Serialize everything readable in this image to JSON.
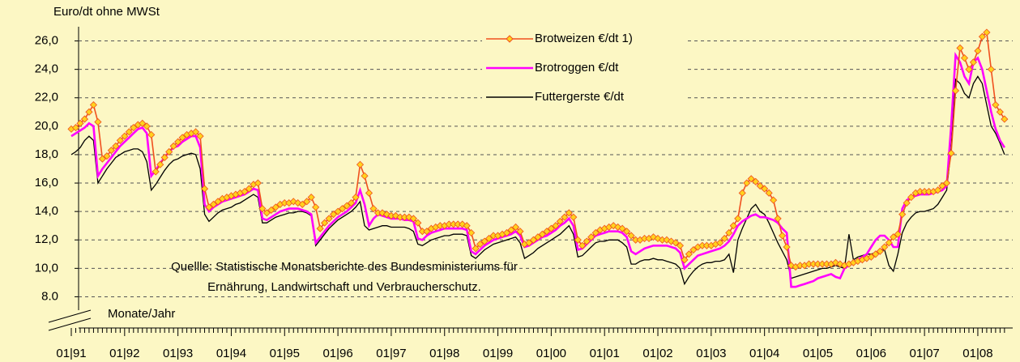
{
  "chart_data": {
    "type": "line",
    "y_axis_label": "Euro/dt ohne MWSt",
    "x_axis_label": "Monate/Jahr",
    "annotation": [
      "Quellle: Statistische Monatsberichte des Bundesministeriums für",
      "Ernährung, Landwirtschaft und Verbraucherschutz."
    ],
    "grid": true,
    "ylim": [
      7,
      27
    ],
    "yticks": [
      {
        "value": 26,
        "label": "26,0"
      },
      {
        "value": 24,
        "label": "24,0"
      },
      {
        "value": 22,
        "label": "22,0"
      },
      {
        "value": 20,
        "label": "20,0"
      },
      {
        "value": 18,
        "label": "18,0"
      },
      {
        "value": 16,
        "label": "16,0"
      },
      {
        "value": 14,
        "label": "14,0"
      },
      {
        "value": 12,
        "label": "12,0"
      },
      {
        "value": 10,
        "label": "10,0"
      },
      {
        "value": 8,
        "label": "8.0"
      }
    ],
    "categories": [
      "01|91",
      null,
      null,
      null,
      null,
      null,
      null,
      null,
      null,
      null,
      null,
      null,
      "01|92",
      null,
      null,
      null,
      null,
      null,
      null,
      null,
      null,
      null,
      null,
      null,
      "01|93",
      null,
      null,
      null,
      null,
      null,
      null,
      null,
      null,
      null,
      null,
      null,
      "01|94",
      null,
      null,
      null,
      null,
      null,
      null,
      null,
      null,
      null,
      null,
      null,
      "01|95",
      null,
      null,
      null,
      null,
      null,
      null,
      null,
      null,
      null,
      null,
      null,
      "01|96",
      null,
      null,
      null,
      null,
      null,
      null,
      null,
      null,
      null,
      null,
      null,
      "01|97",
      null,
      null,
      null,
      null,
      null,
      null,
      null,
      null,
      null,
      null,
      null,
      "01|98",
      null,
      null,
      null,
      null,
      null,
      null,
      null,
      null,
      null,
      null,
      null,
      "01|99",
      null,
      null,
      null,
      null,
      null,
      null,
      null,
      null,
      null,
      null,
      null,
      "01|00",
      null,
      null,
      null,
      null,
      null,
      null,
      null,
      null,
      null,
      null,
      null,
      "01|01",
      null,
      null,
      null,
      null,
      null,
      null,
      null,
      null,
      null,
      null,
      null,
      "01|02",
      null,
      null,
      null,
      null,
      null,
      null,
      null,
      null,
      null,
      null,
      null,
      "01|03",
      null,
      null,
      null,
      null,
      null,
      null,
      null,
      null,
      null,
      null,
      null,
      "01|04",
      null,
      null,
      null,
      null,
      null,
      null,
      null,
      null,
      null,
      null,
      null,
      "01|05",
      null,
      null,
      null,
      null,
      null,
      null,
      null,
      null,
      null,
      null,
      null,
      "01|06",
      null,
      null,
      null,
      null,
      null,
      null,
      null,
      null,
      null,
      null,
      null,
      "01|07",
      null,
      null,
      null,
      null,
      null,
      null,
      null,
      null,
      null,
      null,
      null,
      "01|08",
      null,
      null,
      null,
      null,
      null,
      null
    ],
    "series": [
      {
        "name": "Brotweizen €/dt 1)",
        "color": "#f0501e",
        "marker": "diamond",
        "marker_color": "#ffd21e",
        "values": [
          19.8,
          19.9,
          20.2,
          20.5,
          21.0,
          21.5,
          20.3,
          17.7,
          17.9,
          18.3,
          18.6,
          19.0,
          19.3,
          19.6,
          19.9,
          20.1,
          20.2,
          20.0,
          19.4,
          16.8,
          17.3,
          17.8,
          18.2,
          18.6,
          18.9,
          19.2,
          19.4,
          19.5,
          19.6,
          19.3,
          15.6,
          14.3,
          14.5,
          14.7,
          14.9,
          15.0,
          15.1,
          15.2,
          15.3,
          15.4,
          15.6,
          15.9,
          16.0,
          14.2,
          13.9,
          14.1,
          14.3,
          14.5,
          14.6,
          14.6,
          14.7,
          14.6,
          14.5,
          14.7,
          15.0,
          14.3,
          12.8,
          13.2,
          13.5,
          13.8,
          14.0,
          14.2,
          14.4,
          14.6,
          15.0,
          17.3,
          16.5,
          15.3,
          14.2,
          13.9,
          13.9,
          13.8,
          13.7,
          13.7,
          13.6,
          13.6,
          13.6,
          13.5,
          13.2,
          12.6,
          12.6,
          12.8,
          12.9,
          13.0,
          13.0,
          13.1,
          13.1,
          13.1,
          13.1,
          13.0,
          12.5,
          11.4,
          11.7,
          11.9,
          12.1,
          12.3,
          12.3,
          12.4,
          12.5,
          12.7,
          12.9,
          12.6,
          11.7,
          11.8,
          12.0,
          12.2,
          12.4,
          12.6,
          12.8,
          13.0,
          13.3,
          13.6,
          13.9,
          13.6,
          12.0,
          11.6,
          11.9,
          12.2,
          12.5,
          12.7,
          12.8,
          12.9,
          13.0,
          12.9,
          12.8,
          12.6,
          12.3,
          12.0,
          12.0,
          12.1,
          12.1,
          12.2,
          12.1,
          12.0,
          12.0,
          11.9,
          11.8,
          11.6,
          10.6,
          11.0,
          11.3,
          11.5,
          11.6,
          11.6,
          11.6,
          11.7,
          11.8,
          12.1,
          12.5,
          13.0,
          13.5,
          15.3,
          16.0,
          16.3,
          16.1,
          15.8,
          15.6,
          15.3,
          14.8,
          13.5,
          12.3,
          11.5,
          10.2,
          10.1,
          10.2,
          10.2,
          10.3,
          10.3,
          10.3,
          10.3,
          10.3,
          10.3,
          10.4,
          10.3,
          10.2,
          10.3,
          10.4,
          10.5,
          10.6,
          10.7,
          10.8,
          11.0,
          11.2,
          11.5,
          11.8,
          12.2,
          12.4,
          13.8,
          14.6,
          15.0,
          15.3,
          15.4,
          15.4,
          15.4,
          15.4,
          15.5,
          15.8,
          16.0,
          18.1,
          22.5,
          25.5,
          24.8,
          24.0,
          24.5,
          25.3,
          26.3,
          26.6,
          24.0,
          21.5,
          21.0,
          20.5
        ]
      },
      {
        "name": "Brotroggen €/dt",
        "color": "#ff00ff",
        "values": [
          19.3,
          19.5,
          19.7,
          19.9,
          20.2,
          20.0,
          16.5,
          17.0,
          17.4,
          17.8,
          18.2,
          18.6,
          18.9,
          19.2,
          19.5,
          19.8,
          19.9,
          19.5,
          16.5,
          16.9,
          17.4,
          17.8,
          18.2,
          18.5,
          18.6,
          18.9,
          19.1,
          19.3,
          19.3,
          18.5,
          14.5,
          14.0,
          14.3,
          14.5,
          14.7,
          14.8,
          14.9,
          15.0,
          15.1,
          15.2,
          15.4,
          15.6,
          15.5,
          13.5,
          13.4,
          13.6,
          13.8,
          14.0,
          14.1,
          14.2,
          14.2,
          14.2,
          14.1,
          14.0,
          13.8,
          11.8,
          12.2,
          12.6,
          13.0,
          13.3,
          13.6,
          13.8,
          14.0,
          14.3,
          14.6,
          15.5,
          14.5,
          13.0,
          13.5,
          13.8,
          13.7,
          13.6,
          13.5,
          13.5,
          13.5,
          13.4,
          13.4,
          13.3,
          12.1,
          12.0,
          12.3,
          12.5,
          12.6,
          12.7,
          12.8,
          12.8,
          12.8,
          12.8,
          12.8,
          12.7,
          11.2,
          11.0,
          11.3,
          11.6,
          11.8,
          12.0,
          12.1,
          12.2,
          12.3,
          12.4,
          12.6,
          12.3,
          11.5,
          11.6,
          11.8,
          12.0,
          12.2,
          12.3,
          12.5,
          12.7,
          13.0,
          13.2,
          13.5,
          13.0,
          11.3,
          11.4,
          11.7,
          12.0,
          12.3,
          12.4,
          12.5,
          12.6,
          12.6,
          12.6,
          12.5,
          12.2,
          11.2,
          11.0,
          11.2,
          11.4,
          11.5,
          11.6,
          11.6,
          11.6,
          11.6,
          11.5,
          11.4,
          11.1,
          10.0,
          10.3,
          10.6,
          10.9,
          11.0,
          11.1,
          11.2,
          11.3,
          11.4,
          11.6,
          11.9,
          12.4,
          13.0,
          13.3,
          13.5,
          13.7,
          13.8,
          13.6,
          13.6,
          13.5,
          13.4,
          13.2,
          12.8,
          12.5,
          8.7,
          8.7,
          8.8,
          8.9,
          9.0,
          9.1,
          9.3,
          9.4,
          9.5,
          9.6,
          9.4,
          9.3,
          10.0,
          10.2,
          10.4,
          10.6,
          10.8,
          11.0,
          11.5,
          12.0,
          12.3,
          12.3,
          12.0,
          11.5,
          11.5,
          14.2,
          14.8,
          15.0,
          15.1,
          15.2,
          15.2,
          15.2,
          15.3,
          15.4,
          15.5,
          15.8,
          20.0,
          25.0,
          24.5,
          23.5,
          23.0,
          24.5,
          24.8,
          24.0,
          22.5,
          21.0,
          19.8,
          19.0,
          18.5
        ]
      },
      {
        "name": "Futtergerste €/dt",
        "color": "#000000",
        "values": [
          18.0,
          18.2,
          18.5,
          19.0,
          19.3,
          19.0,
          16.0,
          16.5,
          17.0,
          17.4,
          17.8,
          18.0,
          18.2,
          18.3,
          18.4,
          18.4,
          18.2,
          17.5,
          15.5,
          15.9,
          16.4,
          16.9,
          17.3,
          17.6,
          17.7,
          17.9,
          18.0,
          18.1,
          18.0,
          17.0,
          13.8,
          13.3,
          13.6,
          13.9,
          14.1,
          14.2,
          14.3,
          14.5,
          14.6,
          14.8,
          15.0,
          15.2,
          15.0,
          13.2,
          13.2,
          13.4,
          13.6,
          13.7,
          13.8,
          13.9,
          13.9,
          14.0,
          14.0,
          13.9,
          13.7,
          11.6,
          12.0,
          12.4,
          12.8,
          13.1,
          13.4,
          13.6,
          13.8,
          14.0,
          14.3,
          14.7,
          13.0,
          12.7,
          12.8,
          12.9,
          13.0,
          13.0,
          12.9,
          12.9,
          12.9,
          12.9,
          12.8,
          12.6,
          11.7,
          11.6,
          11.8,
          12.0,
          12.1,
          12.2,
          12.3,
          12.3,
          12.4,
          12.4,
          12.4,
          12.3,
          10.9,
          10.7,
          11.0,
          11.3,
          11.5,
          11.7,
          11.8,
          11.9,
          12.0,
          12.1,
          12.2,
          11.8,
          10.7,
          10.9,
          11.1,
          11.4,
          11.6,
          11.8,
          12.0,
          12.2,
          12.4,
          12.7,
          13.0,
          12.4,
          10.8,
          10.9,
          11.2,
          11.5,
          11.8,
          11.9,
          11.9,
          12.0,
          12.0,
          12.0,
          11.8,
          11.5,
          10.3,
          10.3,
          10.5,
          10.6,
          10.6,
          10.7,
          10.6,
          10.6,
          10.5,
          10.4,
          10.3,
          10.0,
          8.9,
          9.4,
          9.8,
          10.1,
          10.3,
          10.4,
          10.4,
          10.5,
          10.5,
          10.6,
          11.0,
          9.7,
          12.0,
          12.8,
          13.5,
          14.2,
          14.5,
          14.0,
          13.8,
          13.2,
          12.5,
          11.8,
          11.2,
          10.6,
          9.3,
          9.4,
          9.5,
          9.6,
          9.7,
          9.8,
          9.9,
          10.0,
          10.0,
          10.1,
          10.2,
          10.1,
          10.0,
          12.4,
          10.6,
          10.8,
          10.9,
          11.0,
          11.0,
          11.1,
          11.2,
          11.3,
          10.2,
          9.8,
          11.0,
          12.5,
          13.2,
          13.6,
          13.9,
          14.0,
          14.0,
          14.1,
          14.2,
          14.5,
          15.0,
          15.5,
          18.5,
          23.3,
          23.0,
          22.3,
          22.0,
          23.0,
          23.5,
          23.0,
          21.5,
          20.0,
          19.5,
          18.8,
          18.0
        ]
      }
    ]
  }
}
